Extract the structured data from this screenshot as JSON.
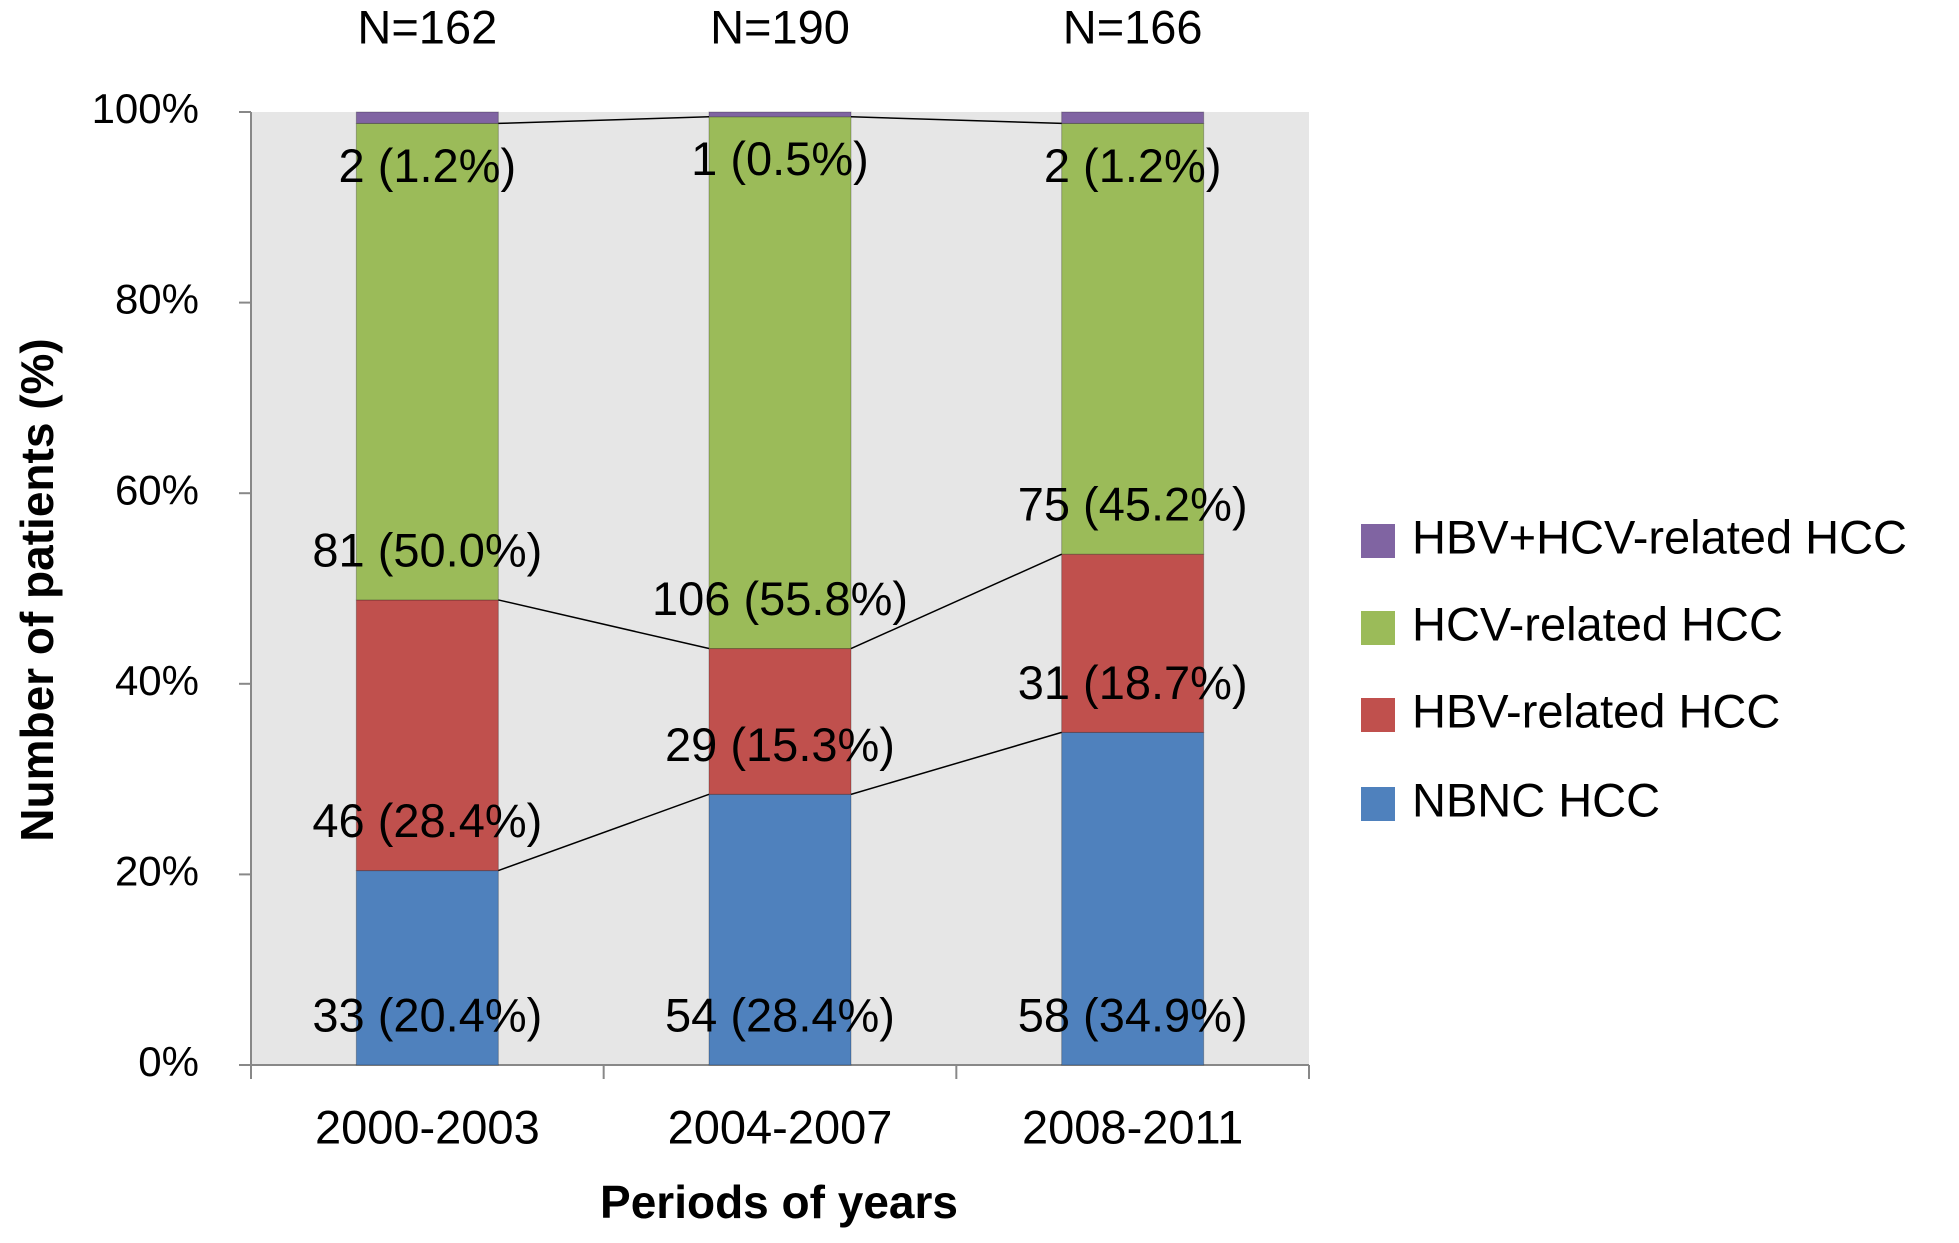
{
  "chart_data": {
    "type": "stacked_bar",
    "x_label": "Periods of years",
    "y_label": "Number of patients (%)",
    "categories": [
      "2000-2003",
      "2004-2007",
      "2008-2011"
    ],
    "annotations": [
      "N=162",
      "N=190",
      "N=166"
    ],
    "series": [
      {
        "name": "NBNC HCC",
        "color": "#4f81bd",
        "values": [
          20.4,
          28.4,
          34.9
        ],
        "value_labels": [
          "33 (20.4%)",
          "54 (28.4%)",
          "58 (34.9%)"
        ]
      },
      {
        "name": "HBV-related HCC",
        "color": "#c0504d",
        "values": [
          28.4,
          15.3,
          18.7
        ],
        "value_labels": [
          "46 (28.4%)",
          "29 (15.3%)",
          "31 (18.7%)"
        ]
      },
      {
        "name": "HCV-related HCC",
        "color": "#9bbb59",
        "values": [
          50.0,
          55.8,
          45.2
        ],
        "value_labels": [
          "81 (50.0%)",
          "106 (55.8%)",
          "75 (45.2%)"
        ]
      },
      {
        "name": "HBV+HCV-related HCC",
        "color": "#8064a2",
        "values": [
          1.2,
          0.5,
          1.2
        ],
        "value_labels": [
          "2 (1.2%)",
          "1 (0.5%)",
          "2 (1.2%)"
        ]
      }
    ],
    "ylim": [
      0,
      100
    ],
    "yticks": [
      {
        "value": 0,
        "label": "0%"
      },
      {
        "value": 20,
        "label": "20%"
      },
      {
        "value": 40,
        "label": "40%"
      },
      {
        "value": 60,
        "label": "60%"
      },
      {
        "value": 80,
        "label": "80%"
      },
      {
        "value": 100,
        "label": "100%"
      }
    ],
    "grid": false,
    "legend": "right"
  }
}
